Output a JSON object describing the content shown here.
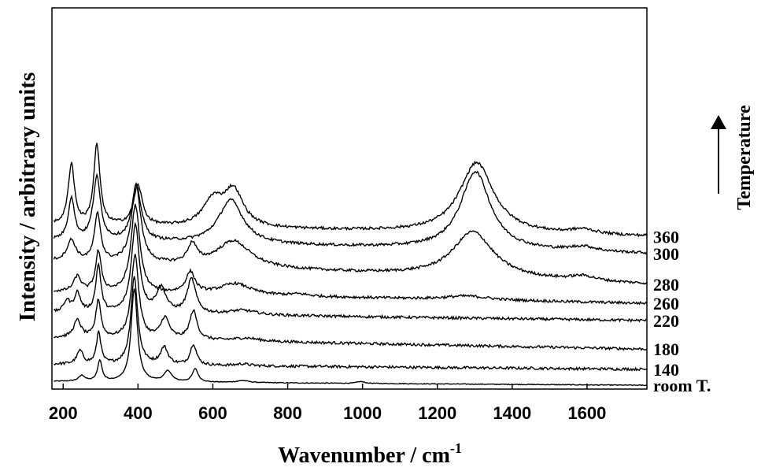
{
  "chart_data": {
    "type": "line",
    "xlabel": "Wavenumber / cm",
    "xlabel_superscript": "-1",
    "ylabel": "Intensity / arbitrary units",
    "side_label": "Temperature",
    "side_arrow": "up",
    "xlim": [
      170,
      1760
    ],
    "xticks": [
      200,
      400,
      600,
      800,
      1000,
      1200,
      1400,
      1600
    ],
    "ylim": [
      0,
      10
    ],
    "grid": false,
    "legend": "none",
    "line_color": "#000000",
    "series": [
      {
        "name": "room T.",
        "baseline": 0.2,
        "end_level": 0.1,
        "peaks": [
          [
            250,
            0.15,
            10
          ],
          [
            298,
            0.55,
            7
          ],
          [
            390,
            2.45,
            10
          ],
          [
            480,
            0.28,
            12
          ],
          [
            553,
            0.35,
            9
          ],
          [
            680,
            0.05,
            20
          ],
          [
            995,
            0.05,
            12
          ]
        ]
      },
      {
        "name": "140",
        "baseline": 0.65,
        "end_level": 0.52,
        "peaks": [
          [
            245,
            0.35,
            10
          ],
          [
            295,
            0.85,
            7
          ],
          [
            390,
            2.3,
            11
          ],
          [
            470,
            0.45,
            12
          ],
          [
            548,
            0.55,
            10
          ],
          [
            680,
            0.05,
            20
          ]
        ]
      },
      {
        "name": "180",
        "baseline": 1.35,
        "end_level": 1.05,
        "peaks": [
          [
            238,
            0.45,
            12
          ],
          [
            294,
            1.0,
            8
          ],
          [
            392,
            2.2,
            12
          ],
          [
            472,
            0.55,
            14
          ],
          [
            548,
            0.75,
            12
          ],
          [
            690,
            0.08,
            40
          ]
        ]
      },
      {
        "name": "220",
        "baseline": 2.0,
        "end_level": 1.8,
        "peaks": [
          [
            210,
            0.3,
            10
          ],
          [
            238,
            0.5,
            10
          ],
          [
            294,
            1.25,
            8
          ],
          [
            393,
            2.3,
            13
          ],
          [
            462,
            0.65,
            16
          ],
          [
            543,
            0.9,
            14
          ],
          [
            680,
            0.12,
            45
          ]
        ]
      },
      {
        "name": "260",
        "baseline": 2.55,
        "end_level": 2.25,
        "peaks": [
          [
            238,
            0.4,
            12
          ],
          [
            294,
            1.05,
            9
          ],
          [
            393,
            2.3,
            14
          ],
          [
            540,
            0.55,
            15
          ],
          [
            660,
            0.3,
            50
          ],
          [
            830,
            0.05,
            30
          ],
          [
            1280,
            0.1,
            70
          ]
        ]
      },
      {
        "name": "280",
        "baseline": 3.35,
        "end_level": 2.75,
        "peaks": [
          [
            222,
            0.55,
            14
          ],
          [
            292,
            1.25,
            10
          ],
          [
            395,
            2.05,
            15
          ],
          [
            545,
            0.5,
            15
          ],
          [
            655,
            0.7,
            55
          ],
          [
            1295,
            1.2,
            65
          ],
          [
            1590,
            0.12,
            40
          ]
        ]
      },
      {
        "name": "300",
        "baseline": 3.9,
        "end_level": 3.55,
        "peaks": [
          [
            222,
            1.1,
            10
          ],
          [
            290,
            1.65,
            12
          ],
          [
            396,
            1.45,
            15
          ],
          [
            648,
            1.15,
            40
          ],
          [
            1302,
            2.05,
            48
          ],
          [
            1590,
            0.12,
            40
          ]
        ]
      },
      {
        "name": "360",
        "baseline": 4.3,
        "end_level": 4.0,
        "peaks": [
          [
            222,
            1.6,
            10
          ],
          [
            290,
            2.1,
            10
          ],
          [
            400,
            1.05,
            14
          ],
          [
            600,
            0.65,
            32
          ],
          [
            655,
            0.95,
            32
          ],
          [
            1305,
            1.85,
            55
          ],
          [
            1590,
            0.12,
            40
          ]
        ]
      }
    ]
  }
}
